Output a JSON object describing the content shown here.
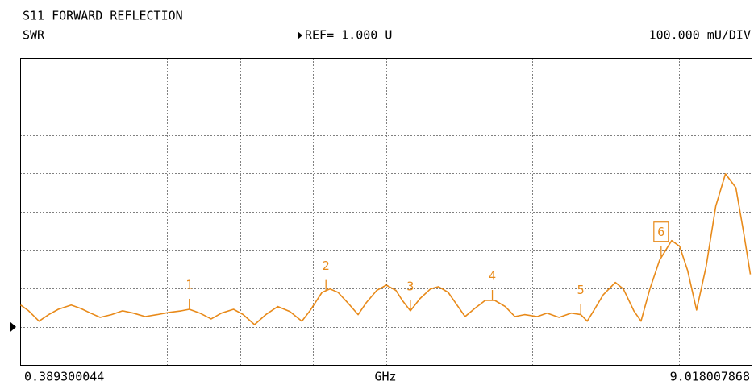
{
  "chart_data": {
    "type": "line",
    "title": "S11 FORWARD REFLECTION",
    "format_label": "SWR",
    "ref": {
      "value": 1,
      "label": "REF= 1.000 U"
    },
    "scale_label": "100.000 mU/DIV",
    "x_unit": "GHz",
    "xlim": [
      0.389300044,
      9.018007868
    ],
    "xticks": [
      1.2522,
      2.115,
      2.9779,
      3.8408,
      4.7037,
      5.5665,
      6.4294,
      7.2923,
      8.1551
    ],
    "ylim": [
      0.9,
      1.7
    ],
    "yticks": [
      1.0,
      1.1,
      1.2,
      1.3,
      1.4,
      1.5,
      1.6
    ],
    "grid": true,
    "series": [
      {
        "name": "S11",
        "color": "#e88a1a",
        "x": [
          0.389,
          0.484,
          0.607,
          0.721,
          0.835,
          0.987,
          1.1,
          1.214,
          1.328,
          1.461,
          1.593,
          1.717,
          1.859,
          2.001,
          2.144,
          2.286,
          2.38,
          2.504,
          2.637,
          2.76,
          2.902,
          3.016,
          3.149,
          3.282,
          3.424,
          3.566,
          3.708,
          3.803,
          3.945,
          4.04,
          4.135,
          4.249,
          4.372,
          4.467,
          4.59,
          4.704,
          4.818,
          4.893,
          4.988,
          5.102,
          5.225,
          5.32,
          5.434,
          5.538,
          5.633,
          5.747,
          5.87,
          5.984,
          6.107,
          6.221,
          6.335,
          6.486,
          6.6,
          6.742,
          6.885,
          6.998,
          7.074,
          7.15,
          7.264,
          7.406,
          7.501,
          7.624,
          7.709,
          7.814,
          7.928,
          8.07,
          8.165,
          8.259,
          8.364,
          8.478,
          8.591,
          8.705,
          8.828,
          8.923,
          8.999
        ],
        "values": [
          1.057,
          1.042,
          1.015,
          1.032,
          1.046,
          1.057,
          1.048,
          1.036,
          1.025,
          1.032,
          1.042,
          1.036,
          1.027,
          1.032,
          1.038,
          1.042,
          1.046,
          1.036,
          1.021,
          1.036,
          1.046,
          1.032,
          1.006,
          1.032,
          1.053,
          1.04,
          1.015,
          1.042,
          1.09,
          1.099,
          1.09,
          1.063,
          1.032,
          1.063,
          1.095,
          1.109,
          1.095,
          1.069,
          1.042,
          1.074,
          1.099,
          1.105,
          1.09,
          1.057,
          1.027,
          1.048,
          1.069,
          1.069,
          1.053,
          1.027,
          1.032,
          1.027,
          1.036,
          1.025,
          1.036,
          1.032,
          1.015,
          1.042,
          1.084,
          1.116,
          1.099,
          1.042,
          1.015,
          1.099,
          1.174,
          1.225,
          1.21,
          1.147,
          1.044,
          1.158,
          1.315,
          1.399,
          1.363,
          1.242,
          1.137
        ]
      }
    ],
    "markers": [
      {
        "label": "1",
        "x": 2.38,
        "y": 1.046
      },
      {
        "label": "2",
        "x": 3.992,
        "y": 1.095
      },
      {
        "label": "3",
        "x": 4.988,
        "y": 1.042
      },
      {
        "label": "4",
        "x": 5.955,
        "y": 1.069
      },
      {
        "label": "5",
        "x": 6.998,
        "y": 1.032
      },
      {
        "label": "6",
        "x": 7.946,
        "y": 1.183,
        "active": true
      }
    ]
  }
}
